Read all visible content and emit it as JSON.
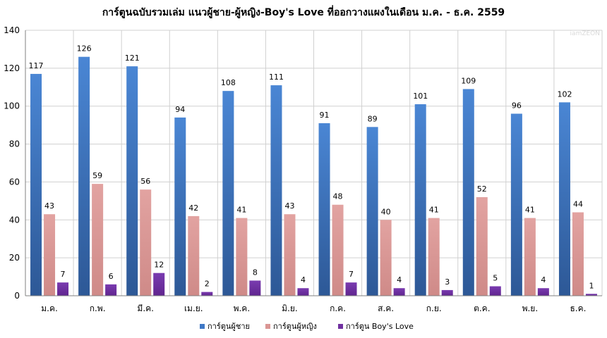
{
  "chart_data": {
    "type": "bar",
    "title": "การ์ตูนฉบับรวมเล่ม แนวผู้ชาย-ผู้หญิง-Boy's Love ที่ออกวางแผงในเดือน ม.ค. - ธ.ค. 2559",
    "watermark": "iamZEON",
    "categories": [
      "ม.ค.",
      "ก.พ.",
      "มี.ค.",
      "เม.ย.",
      "พ.ค.",
      "มิ.ย.",
      "ก.ค.",
      "ส.ค.",
      "ก.ย.",
      "ต.ค.",
      "พ.ย.",
      "ธ.ค."
    ],
    "series": [
      {
        "name": "การ์ตูนผู้ชาย",
        "values": [
          117,
          126,
          121,
          94,
          108,
          111,
          91,
          89,
          101,
          109,
          96,
          102
        ],
        "color": "#3f78c6"
      },
      {
        "name": "การ์ตูนผู้หญิง",
        "values": [
          43,
          59,
          56,
          42,
          41,
          43,
          48,
          40,
          41,
          52,
          41,
          44
        ],
        "color": "#da9694"
      },
      {
        "name": "การ์ตูน Boy's Love",
        "values": [
          7,
          6,
          12,
          2,
          8,
          4,
          7,
          4,
          3,
          5,
          4,
          1
        ],
        "color": "#7030a0"
      }
    ],
    "ylim": [
      0,
      140
    ],
    "yticks": [
      0,
      20,
      40,
      60,
      80,
      100,
      120,
      140
    ],
    "grid": true,
    "legend_position": "bottom",
    "xlabel": "",
    "ylabel": ""
  }
}
